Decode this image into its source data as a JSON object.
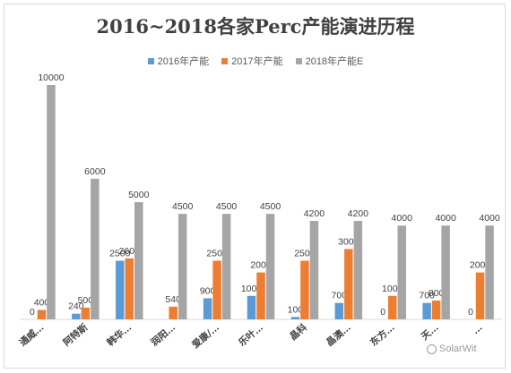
{
  "chart_data": {
    "type": "bar",
    "title": "2016~2018各家Perc产能演进历程",
    "categories": [
      "通威…",
      "阿特斯",
      "韩华…",
      "润阳…",
      "爱康/…",
      "乐叶…",
      "晶科",
      "晶澳…",
      "东方…",
      "天…",
      "…"
    ],
    "series": [
      {
        "name": "2016年产能",
        "color": "#5b9bd5",
        "values": [
          0,
          240,
          2500,
          null,
          900,
          1000,
          100,
          700,
          null,
          700,
          null
        ]
      },
      {
        "name": "2017年产能",
        "color": "#ed7d31",
        "values": [
          400,
          500,
          2600,
          540,
          2500,
          2000,
          2500,
          3000,
          1000,
          800,
          2000
        ]
      },
      {
        "name": "2018年产能E",
        "color": "#a5a5a5",
        "values": [
          10000,
          6000,
          5000,
          4500,
          4500,
          4500,
          4200,
          4200,
          4000,
          4000,
          4000
        ]
      }
    ],
    "labels": {
      "2016年产能": [
        "0",
        "240",
        "2500",
        "",
        "900",
        "1000",
        "100",
        "700",
        "0",
        "700",
        "0"
      ],
      "2017年产能": [
        "400",
        "500",
        "2600",
        "540",
        "2500",
        "2000",
        "2500",
        "3000",
        "1000",
        "800",
        "2000"
      ],
      "2018年产能E": [
        "10000",
        "6000",
        "5000",
        "4500",
        "4500",
        "4500",
        "4200",
        "4200",
        "4000",
        "4000",
        "4000"
      ]
    },
    "ylim": [
      0,
      10000
    ],
    "grid": false,
    "legend": "top-center"
  },
  "watermark": {
    "text": "SolarWit"
  }
}
